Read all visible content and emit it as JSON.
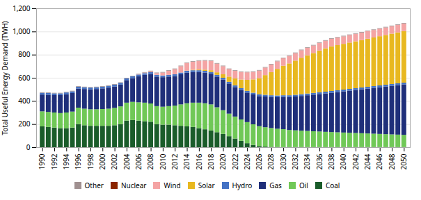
{
  "chart_data": {
    "type": "bar",
    "stacked": true,
    "ylabel": "Total Useful Energy Demand (TWH)",
    "x": [
      1990,
      1991,
      1992,
      1993,
      1994,
      1995,
      1996,
      1997,
      1998,
      1999,
      2000,
      2001,
      2002,
      2003,
      2004,
      2005,
      2006,
      2007,
      2008,
      2009,
      2010,
      2011,
      2012,
      2013,
      2014,
      2015,
      2016,
      2017,
      2018,
      2019,
      2020,
      2021,
      2022,
      2023,
      2024,
      2025,
      2026,
      2027,
      2028,
      2029,
      2030,
      2031,
      2032,
      2033,
      2034,
      2035,
      2036,
      2037,
      2038,
      2039,
      2040,
      2041,
      2042,
      2043,
      2044,
      2045,
      2046,
      2047,
      2048,
      2049,
      2050
    ],
    "series": [
      {
        "name": "Coal",
        "color": "#1a5c2a",
        "values": [
          180,
          175,
          170,
          165,
          165,
          170,
          200,
          190,
          185,
          185,
          185,
          185,
          190,
          200,
          230,
          235,
          230,
          225,
          220,
          200,
          195,
          195,
          190,
          185,
          180,
          175,
          165,
          155,
          145,
          130,
          115,
          95,
          75,
          55,
          35,
          20,
          10,
          5,
          3,
          2,
          1,
          1,
          1,
          1,
          1,
          1,
          1,
          1,
          1,
          1,
          1,
          1,
          1,
          1,
          1,
          1,
          1,
          1,
          1,
          1,
          1
        ]
      },
      {
        "name": "Oil",
        "color": "#70c857",
        "values": [
          130,
          130,
          130,
          130,
          135,
          138,
          142,
          143,
          143,
          143,
          145,
          148,
          150,
          153,
          155,
          157,
          158,
          160,
          158,
          155,
          155,
          160,
          170,
          185,
          200,
          210,
          220,
          225,
          225,
          215,
          205,
          195,
          190,
          185,
          182,
          178,
          172,
          168,
          163,
          158,
          155,
          148,
          145,
          142,
          140,
          137,
          135,
          132,
          130,
          128,
          126,
          124,
          122,
          120,
          118,
          116,
          114,
          112,
          110,
          108,
          106
        ]
      },
      {
        "name": "Gas",
        "color": "#1f2f7a",
        "values": [
          145,
          148,
          150,
          155,
          158,
          160,
          165,
          170,
          172,
          175,
          178,
          182,
          185,
          188,
          195,
          205,
          225,
          240,
          255,
          255,
          255,
          255,
          255,
          260,
          265,
          265,
          265,
          265,
          265,
          265,
          265,
          260,
          255,
          255,
          255,
          258,
          260,
          265,
          268,
          272,
          278,
          285,
          292,
          300,
          308,
          316,
          324,
          332,
          340,
          348,
          356,
          364,
          372,
          380,
          388,
          396,
          404,
          412,
          420,
          428,
          436
        ]
      },
      {
        "name": "Hydro",
        "color": "#4472c4",
        "values": [
          15,
          15,
          15,
          15,
          15,
          15,
          15,
          15,
          15,
          15,
          15,
          15,
          15,
          15,
          15,
          15,
          15,
          15,
          15,
          15,
          15,
          15,
          15,
          15,
          15,
          15,
          15,
          15,
          15,
          15,
          15,
          15,
          15,
          15,
          15,
          15,
          15,
          15,
          15,
          15,
          15,
          15,
          15,
          15,
          15,
          15,
          15,
          15,
          15,
          15,
          15,
          15,
          15,
          15,
          15,
          15,
          15,
          15,
          15,
          15,
          15
        ]
      },
      {
        "name": "Solar",
        "color": "#e8b820",
        "values": [
          0,
          0,
          0,
          0,
          0,
          0,
          0,
          0,
          0,
          0,
          0,
          0,
          0,
          0,
          0,
          0,
          0,
          0,
          0,
          0,
          0,
          0,
          0,
          0,
          2,
          4,
          6,
          10,
          15,
          22,
          30,
          45,
          60,
          75,
          95,
          115,
          140,
          170,
          200,
          230,
          255,
          275,
          295,
          315,
          330,
          345,
          360,
          375,
          385,
          390,
          395,
          400,
          405,
          410,
          415,
          420,
          425,
          430,
          435,
          440,
          445
        ]
      },
      {
        "name": "Wind",
        "color": "#f4a4a4",
        "values": [
          0,
          0,
          0,
          0,
          0,
          0,
          0,
          0,
          0,
          0,
          0,
          0,
          0,
          0,
          0,
          0,
          2,
          4,
          8,
          15,
          25,
          35,
          45,
          55,
          65,
          70,
          75,
          78,
          80,
          75,
          70,
          65,
          65,
          65,
          65,
          65,
          65,
          65,
          65,
          65,
          65,
          65,
          65,
          65,
          65,
          65,
          65,
          65,
          65,
          65,
          65,
          65,
          65,
          65,
          65,
          65,
          65,
          65,
          65,
          65,
          65
        ]
      },
      {
        "name": "Nuclear",
        "color": "#8b2500",
        "values": [
          0,
          0,
          0,
          0,
          0,
          0,
          0,
          0,
          0,
          0,
          0,
          0,
          0,
          0,
          0,
          0,
          0,
          0,
          0,
          0,
          0,
          0,
          0,
          0,
          0,
          0,
          0,
          0,
          0,
          0,
          0,
          0,
          0,
          0,
          0,
          0,
          0,
          0,
          0,
          0,
          0,
          0,
          0,
          0,
          0,
          0,
          0,
          0,
          0,
          0,
          0,
          0,
          0,
          0,
          0,
          0,
          0,
          0,
          0,
          0,
          0
        ]
      },
      {
        "name": "Other",
        "color": "#a09090",
        "values": [
          5,
          5,
          5,
          5,
          5,
          5,
          5,
          5,
          5,
          5,
          5,
          5,
          5,
          5,
          5,
          5,
          5,
          5,
          5,
          5,
          5,
          5,
          5,
          5,
          5,
          5,
          5,
          5,
          5,
          5,
          5,
          5,
          5,
          5,
          5,
          5,
          5,
          5,
          5,
          5,
          5,
          5,
          5,
          5,
          5,
          5,
          5,
          5,
          5,
          5,
          5,
          5,
          5,
          5,
          5,
          5,
          5,
          5,
          5,
          5,
          5
        ]
      }
    ],
    "xlim": [
      1989,
      2051
    ],
    "xticks": [
      1990,
      1992,
      1994,
      1996,
      1998,
      2000,
      2002,
      2004,
      2006,
      2008,
      2010,
      2012,
      2014,
      2016,
      2018,
      2020,
      2022,
      2024,
      2026,
      2028,
      2030,
      2032,
      2034,
      2036,
      2038,
      2040,
      2042,
      2044,
      2046,
      2048,
      2050
    ],
    "ylim": [
      0,
      1200
    ],
    "yticks": [
      0,
      200,
      400,
      600,
      800,
      {
        "value": 1000,
        "label": "1,000"
      },
      {
        "value": 1200,
        "label": "1,200"
      }
    ],
    "grid": true,
    "legend": "bottom"
  }
}
